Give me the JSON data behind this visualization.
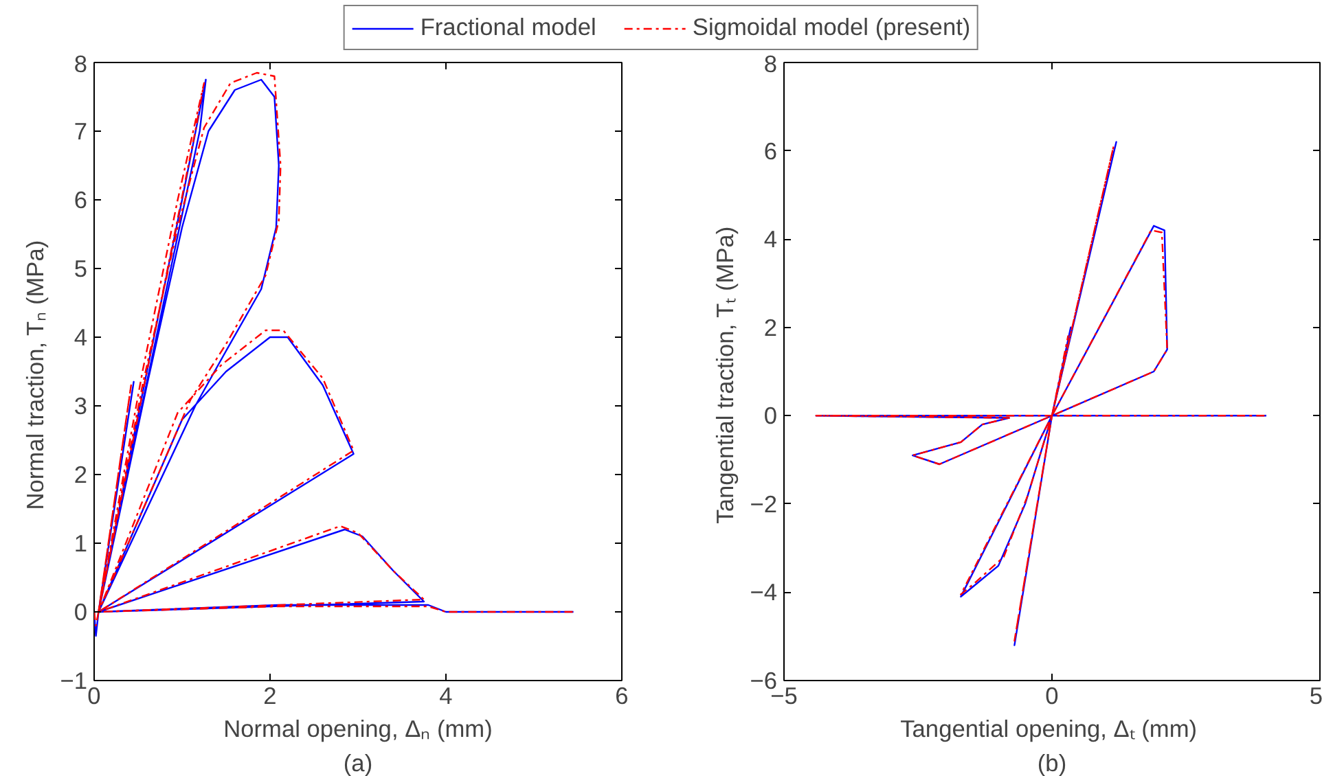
{
  "chart_data": [
    {
      "type": "line",
      "xlabel": "Normal opening, Δₙ (mm)",
      "ylabel": "Normal traction, Tₙ  (MPa)",
      "annotations": [
        "(a)"
      ],
      "xlim": [
        0,
        6
      ],
      "ylim": [
        -1,
        8
      ],
      "xticks": [
        0,
        2,
        4,
        6
      ],
      "yticks": [
        -1,
        0,
        1,
        2,
        3,
        4,
        5,
        6,
        7,
        8
      ],
      "grid": false,
      "legend": "top",
      "series": [
        {
          "name": "Fractional model",
          "color": "#0000ff",
          "line_style": "solid",
          "x": [
            0,
            0.02,
            0.05,
            0.45,
            0.05,
            0.6,
            1.0,
            1.27,
            1.2,
            0.05,
            0.6,
            1.0,
            1.3,
            1.6,
            1.9,
            2.05,
            2.1,
            2.07,
            1.9,
            1.5,
            1.15,
            0.05,
            1.0,
            1.5,
            2.0,
            2.2,
            2.6,
            2.95,
            0.05,
            2.85,
            3.05,
            3.4,
            3.75,
            0.05,
            2.1,
            3.8,
            4.0,
            5.45
          ],
          "values": [
            0,
            -0.35,
            0,
            3.35,
            0,
            3.5,
            6.0,
            7.75,
            7.0,
            0,
            3.3,
            5.6,
            7.0,
            7.6,
            7.75,
            7.5,
            6.5,
            5.6,
            4.7,
            3.8,
            3.0,
            0,
            2.8,
            3.5,
            4.0,
            4.0,
            3.3,
            2.3,
            0,
            1.2,
            1.1,
            0.6,
            0.15,
            0,
            0.1,
            0.1,
            0.0,
            0.0
          ]
        },
        {
          "name": "Sigmoidal model (present)",
          "color": "#ff0000",
          "line_style": "dashed",
          "x": [
            0,
            0.02,
            0.05,
            0.42,
            0.05,
            0.55,
            0.95,
            1.25,
            1.15,
            0.05,
            0.55,
            0.95,
            1.25,
            1.55,
            1.85,
            2.05,
            2.12,
            2.1,
            1.95,
            1.5,
            1.1,
            0.05,
            0.95,
            1.45,
            1.95,
            2.15,
            2.6,
            2.95,
            0.05,
            2.8,
            3.0,
            3.4,
            3.75,
            0.05,
            2.1,
            3.8,
            4.0,
            5.45
          ],
          "values": [
            0,
            -0.2,
            0,
            3.3,
            0,
            3.5,
            6.0,
            7.7,
            7.0,
            0,
            3.3,
            5.6,
            7.05,
            7.7,
            7.85,
            7.8,
            6.5,
            5.7,
            4.9,
            3.9,
            3.1,
            0,
            2.9,
            3.6,
            4.1,
            4.1,
            3.4,
            2.35,
            0,
            1.25,
            1.15,
            0.6,
            0.18,
            0,
            0.08,
            0.08,
            0.0,
            0.0
          ]
        }
      ]
    },
    {
      "type": "line",
      "xlabel": "Tangential opening, Δₜ  (mm)",
      "ylabel": "Tangential traction, Tₜ  (MPa)",
      "annotations": [
        "(b)"
      ],
      "xlim": [
        -5,
        5
      ],
      "ylim": [
        -6,
        8
      ],
      "xticks": [
        -5,
        0,
        5
      ],
      "yticks": [
        -6,
        -4,
        -2,
        0,
        2,
        4,
        6,
        8
      ],
      "grid": false,
      "series": [
        {
          "color": "#0000ff",
          "line_style": "solid",
          "x": [
            0,
            0.35,
            0,
            1.2,
            0,
            -0.7,
            0,
            1.9,
            2.1,
            2.15,
            1.9,
            0,
            -1.7,
            -1.5,
            -1.0,
            -0.5,
            0,
            -2.1,
            -2.6,
            -1.7,
            -1.3,
            -0.8,
            -4.4,
            0,
            4.0
          ],
          "values": [
            0,
            2.0,
            0,
            6.2,
            0,
            -5.2,
            0,
            4.3,
            4.2,
            1.5,
            1.0,
            0,
            -4.1,
            -3.9,
            -3.4,
            -2.0,
            0,
            -1.1,
            -0.9,
            -0.6,
            -0.2,
            -0.05,
            0,
            0,
            0
          ]
        },
        {
          "color": "#ff0000",
          "line_style": "dashed",
          "x": [
            0,
            0.3,
            0,
            1.15,
            0,
            -0.7,
            0,
            1.85,
            2.05,
            2.15,
            1.9,
            0,
            -1.7,
            -1.45,
            -0.9,
            -0.45,
            0,
            -2.1,
            -2.6,
            -1.7,
            -1.3,
            -0.8,
            -4.4,
            0,
            4.0
          ],
          "values": [
            0,
            1.8,
            0,
            6.1,
            0,
            -5.1,
            0,
            4.2,
            4.15,
            1.5,
            1.0,
            0,
            -4.05,
            -3.8,
            -3.2,
            -1.8,
            0,
            -1.1,
            -0.9,
            -0.6,
            -0.2,
            -0.05,
            0,
            0,
            0
          ]
        }
      ]
    }
  ]
}
